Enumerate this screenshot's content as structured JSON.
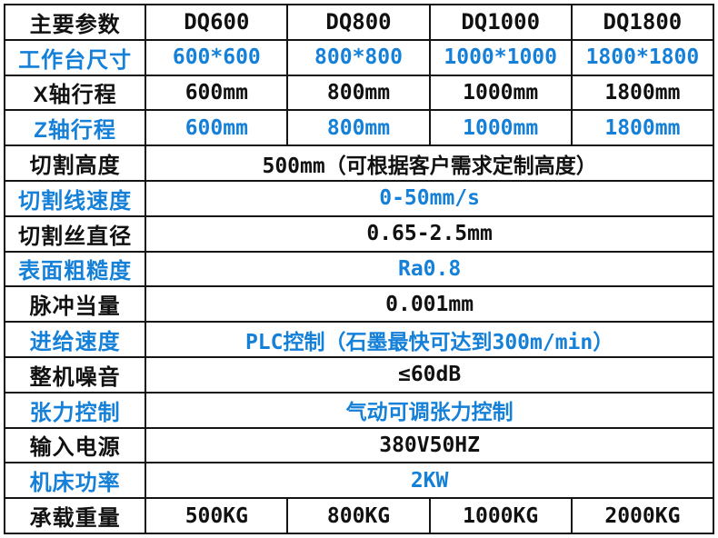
{
  "colors": {
    "accent_blue": "#1580d8",
    "text_black": "#111111",
    "grid_border": "#141414",
    "background": "#ffffff"
  },
  "table": {
    "header": {
      "label": "主要参数",
      "models": [
        "DQ600",
        "DQ800",
        "DQ1000",
        "DQ1800"
      ]
    },
    "rows": [
      {
        "label": "工作台尺寸",
        "blue": true,
        "values": [
          "600*600",
          "800*800",
          "1000*1000",
          "1800*1800"
        ]
      },
      {
        "label": "X轴行程",
        "blue": false,
        "values": [
          "600mm",
          "800mm",
          "1000mm",
          "1800mm"
        ]
      },
      {
        "label": "Z轴行程",
        "blue": true,
        "values": [
          "600mm",
          "800mm",
          "1000mm",
          "1800mm"
        ]
      },
      {
        "label": "切割高度",
        "blue": false,
        "value": "500mm（可根据客户需求定制高度）"
      },
      {
        "label": "切割线速度",
        "blue": true,
        "value": "0-50mm/s"
      },
      {
        "label": "切割丝直径",
        "blue": false,
        "value": "0.65-2.5mm"
      },
      {
        "label": "表面粗糙度",
        "blue": true,
        "value": "Ra0.8"
      },
      {
        "label": "脉冲当量",
        "blue": false,
        "value": "0.001mm"
      },
      {
        "label": "进给速度",
        "blue": true,
        "value": "PLC控制（石墨最快可达到300m/min）"
      },
      {
        "label": "整机噪音",
        "blue": false,
        "value": "≤60dB"
      },
      {
        "label": "张力控制",
        "blue": true,
        "value": "气动可调张力控制"
      },
      {
        "label": "输入电源",
        "blue": false,
        "value": "380V50HZ"
      },
      {
        "label": "机床功率",
        "blue": true,
        "value": "2KW"
      },
      {
        "label": "承载重量",
        "blue": false,
        "values": [
          "500KG",
          "800KG",
          "1000KG",
          "2000KG"
        ]
      }
    ]
  }
}
